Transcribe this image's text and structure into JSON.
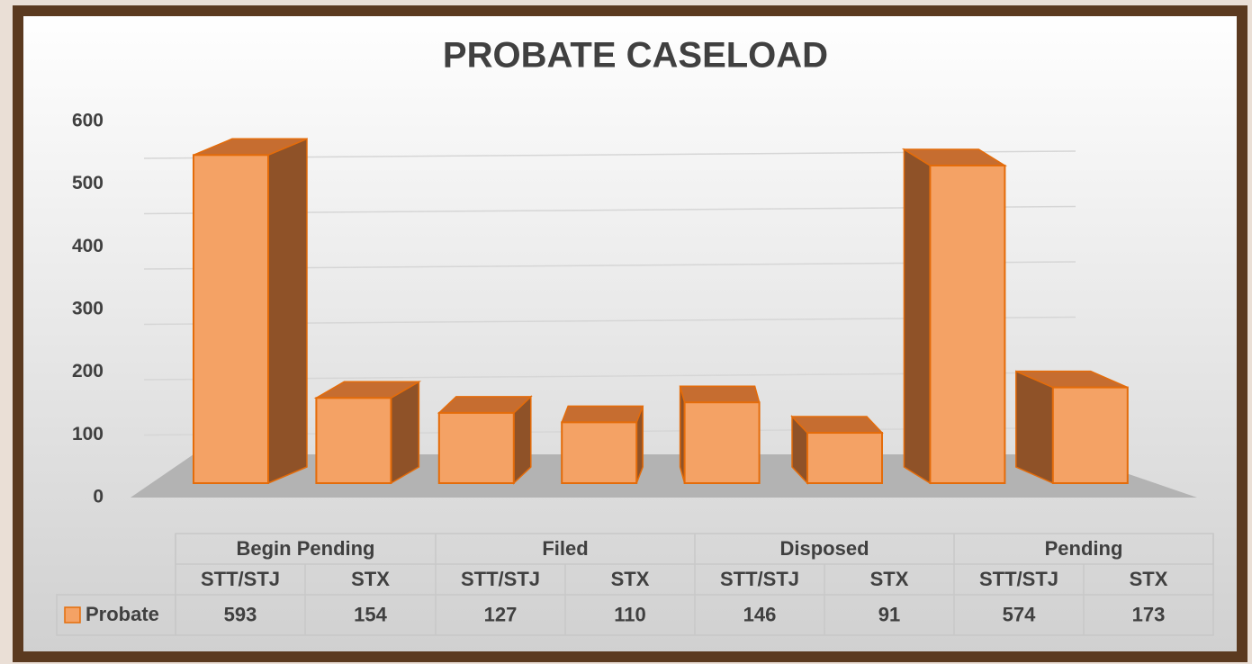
{
  "chart_data": {
    "type": "bar",
    "title": "PROBATE CASELOAD",
    "groups": [
      "Begin Pending",
      "Filed",
      "Disposed",
      "Pending"
    ],
    "categories": [
      "STT/STJ",
      "STX",
      "STT/STJ",
      "STX",
      "STT/STJ",
      "STX",
      "STT/STJ",
      "STX"
    ],
    "series": [
      {
        "name": "Probate",
        "color": "#f4a265",
        "values": [
          593,
          154,
          127,
          110,
          146,
          91,
          574,
          173
        ]
      }
    ],
    "ylim": [
      0,
      600
    ],
    "yticks": [
      0,
      100,
      200,
      300,
      400,
      500,
      600
    ],
    "grid": true
  }
}
